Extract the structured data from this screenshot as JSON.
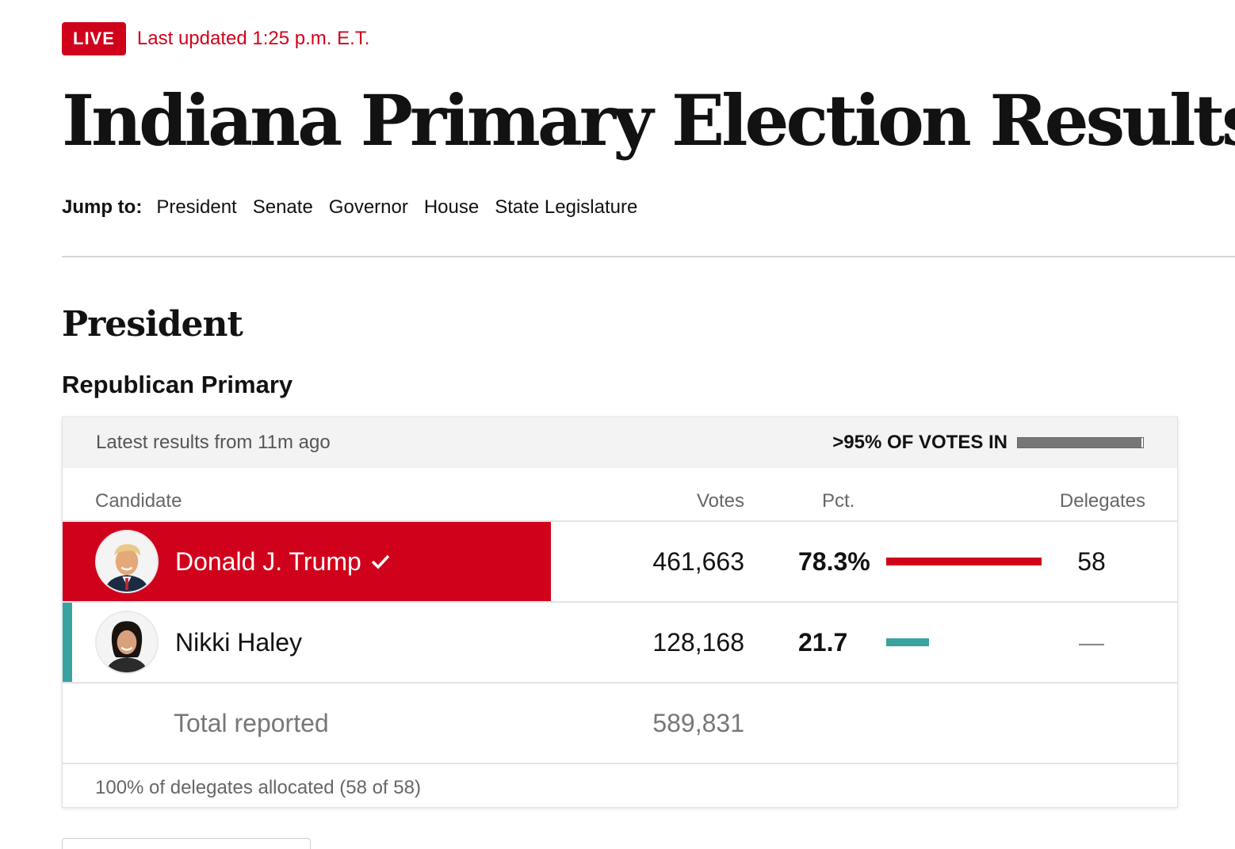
{
  "header": {
    "live_label": "LIVE",
    "updated_text": "Last updated 1:25 p.m. E.T.",
    "title": "Indiana Primary Election Results"
  },
  "jump": {
    "label": "Jump to:",
    "links": [
      "President",
      "Senate",
      "Governor",
      "House",
      "State Legislature"
    ]
  },
  "section": {
    "title": "President",
    "race_title": "Republican Primary"
  },
  "results": {
    "latest_text": "Latest results from 11m ago",
    "votes_in_label": ">95% OF VOTES IN",
    "votes_in_fraction": 0.99,
    "columns": {
      "candidate": "Candidate",
      "votes": "Votes",
      "pct": "Pct.",
      "delegates": "Delegates"
    },
    "candidates": [
      {
        "name": "Donald J. Trump",
        "votes": "461,663",
        "pct": "78.3%",
        "pct_value": 78.3,
        "delegates": "58",
        "winner": true,
        "color": "#d0021b",
        "icon": "check-icon"
      },
      {
        "name": "Nikki Haley",
        "votes": "128,168",
        "pct": "21.7",
        "pct_value": 21.7,
        "delegates": "—",
        "winner": false,
        "color": "#3aa39f"
      }
    ],
    "total_label": "Total reported",
    "total_votes": "589,831",
    "footnote": "100% of delegates allocated (58 of 58)"
  },
  "colors": {
    "accent_red": "#d0021b",
    "haley_teal": "#3aa39f"
  }
}
